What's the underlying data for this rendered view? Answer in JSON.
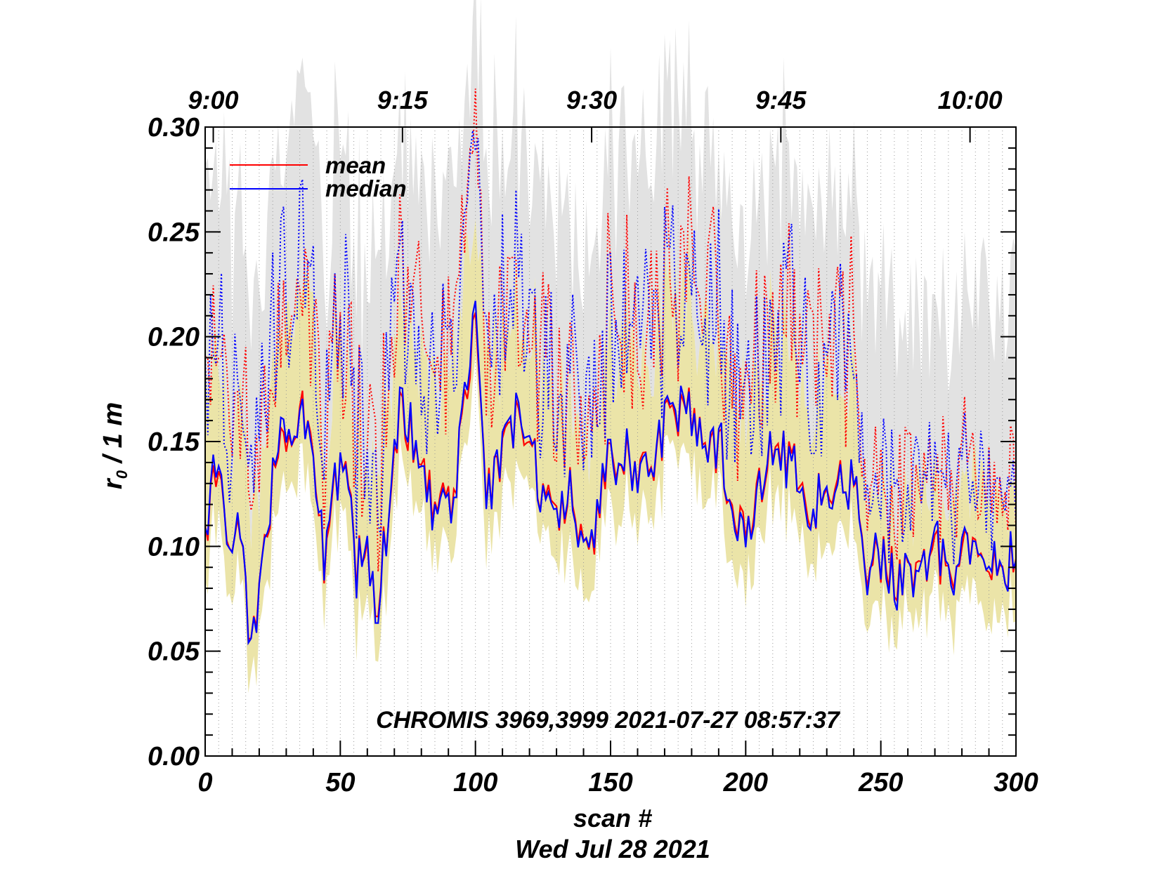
{
  "chart_data": {
    "type": "line",
    "title": "",
    "annotation": "CHROMIS 3969,3999 2021-07-27 08:57:37",
    "xlabel": "scan #",
    "date_label": "Wed Jul 28 2021",
    "ylabel_main": "r",
    "ylabel_sub": "0",
    "ylabel_rest": " / 1 m",
    "xlim": [
      0,
      300
    ],
    "ylim": [
      0.0,
      0.3
    ],
    "x_ticks": [
      {
        "value": 0,
        "label": "0"
      },
      {
        "value": 50,
        "label": "50"
      },
      {
        "value": 100,
        "label": "100"
      },
      {
        "value": 150,
        "label": "150"
      },
      {
        "value": 200,
        "label": "200"
      },
      {
        "value": 250,
        "label": "250"
      },
      {
        "value": 300,
        "label": "300"
      }
    ],
    "y_ticks": [
      {
        "value": 0.0,
        "label": "0.00"
      },
      {
        "value": 0.05,
        "label": "0.05"
      },
      {
        "value": 0.1,
        "label": "0.10"
      },
      {
        "value": 0.15,
        "label": "0.15"
      },
      {
        "value": 0.2,
        "label": "0.20"
      },
      {
        "value": 0.25,
        "label": "0.25"
      },
      {
        "value": 0.3,
        "label": "0.30"
      }
    ],
    "time_ticks": [
      {
        "scan": 3,
        "label": "9:00"
      },
      {
        "scan": 73,
        "label": "9:15"
      },
      {
        "scan": 143,
        "label": "9:30"
      },
      {
        "scan": 213,
        "label": "9:45"
      },
      {
        "scan": 283,
        "label": "10:00"
      }
    ],
    "legend": {
      "position": "top-left",
      "entries": [
        {
          "label": "mean",
          "color": "#ff0000"
        },
        {
          "label": "median",
          "color": "#0000ff"
        }
      ]
    },
    "colors": {
      "mean": "#ff0000",
      "median": "#0000ff",
      "band_low": "#ebe4a8",
      "band_high": "#e2e2e2"
    },
    "series_anchors": {
      "scan": [
        0,
        4,
        8,
        12,
        16,
        20,
        24,
        28,
        32,
        36,
        40,
        44,
        48,
        52,
        56,
        60,
        64,
        68,
        72,
        76,
        80,
        84,
        88,
        92,
        96,
        100,
        104,
        108,
        112,
        116,
        120,
        124,
        128,
        132,
        136,
        140,
        144,
        148,
        152,
        156,
        160,
        164,
        168,
        172,
        176,
        180,
        184,
        188,
        192,
        196,
        200,
        204,
        208,
        212,
        216,
        220,
        224,
        228,
        232,
        236,
        240,
        244,
        248,
        252,
        256,
        260,
        264,
        268,
        272,
        276,
        280,
        284,
        288,
        292,
        296,
        300
      ],
      "mean": [
        0.105,
        0.135,
        0.1,
        0.11,
        0.065,
        0.08,
        0.12,
        0.165,
        0.14,
        0.16,
        0.15,
        0.09,
        0.13,
        0.13,
        0.09,
        0.1,
        0.075,
        0.12,
        0.16,
        0.155,
        0.13,
        0.125,
        0.12,
        0.12,
        0.18,
        0.2,
        0.13,
        0.13,
        0.15,
        0.16,
        0.15,
        0.13,
        0.12,
        0.12,
        0.13,
        0.09,
        0.11,
        0.14,
        0.13,
        0.14,
        0.14,
        0.13,
        0.15,
        0.16,
        0.17,
        0.16,
        0.15,
        0.15,
        0.14,
        0.12,
        0.1,
        0.12,
        0.15,
        0.15,
        0.14,
        0.13,
        0.12,
        0.12,
        0.115,
        0.13,
        0.13,
        0.095,
        0.095,
        0.09,
        0.085,
        0.09,
        0.085,
        0.09,
        0.095,
        0.09,
        0.095,
        0.09,
        0.09,
        0.1,
        0.095,
        0.09
      ],
      "median": [
        0.105,
        0.14,
        0.1,
        0.112,
        0.063,
        0.078,
        0.122,
        0.17,
        0.142,
        0.158,
        0.148,
        0.092,
        0.132,
        0.128,
        0.088,
        0.102,
        0.072,
        0.122,
        0.162,
        0.158,
        0.128,
        0.122,
        0.118,
        0.118,
        0.185,
        0.205,
        0.128,
        0.132,
        0.152,
        0.162,
        0.152,
        0.128,
        0.118,
        0.122,
        0.128,
        0.088,
        0.112,
        0.142,
        0.128,
        0.142,
        0.138,
        0.128,
        0.152,
        0.162,
        0.172,
        0.158,
        0.148,
        0.152,
        0.142,
        0.118,
        0.098,
        0.118,
        0.152,
        0.148,
        0.138,
        0.128,
        0.118,
        0.122,
        0.112,
        0.128,
        0.132,
        0.092,
        0.098,
        0.088,
        0.082,
        0.092,
        0.082,
        0.092,
        0.098,
        0.088,
        0.098,
        0.088,
        0.092,
        0.102,
        0.095,
        0.09
      ]
    }
  }
}
